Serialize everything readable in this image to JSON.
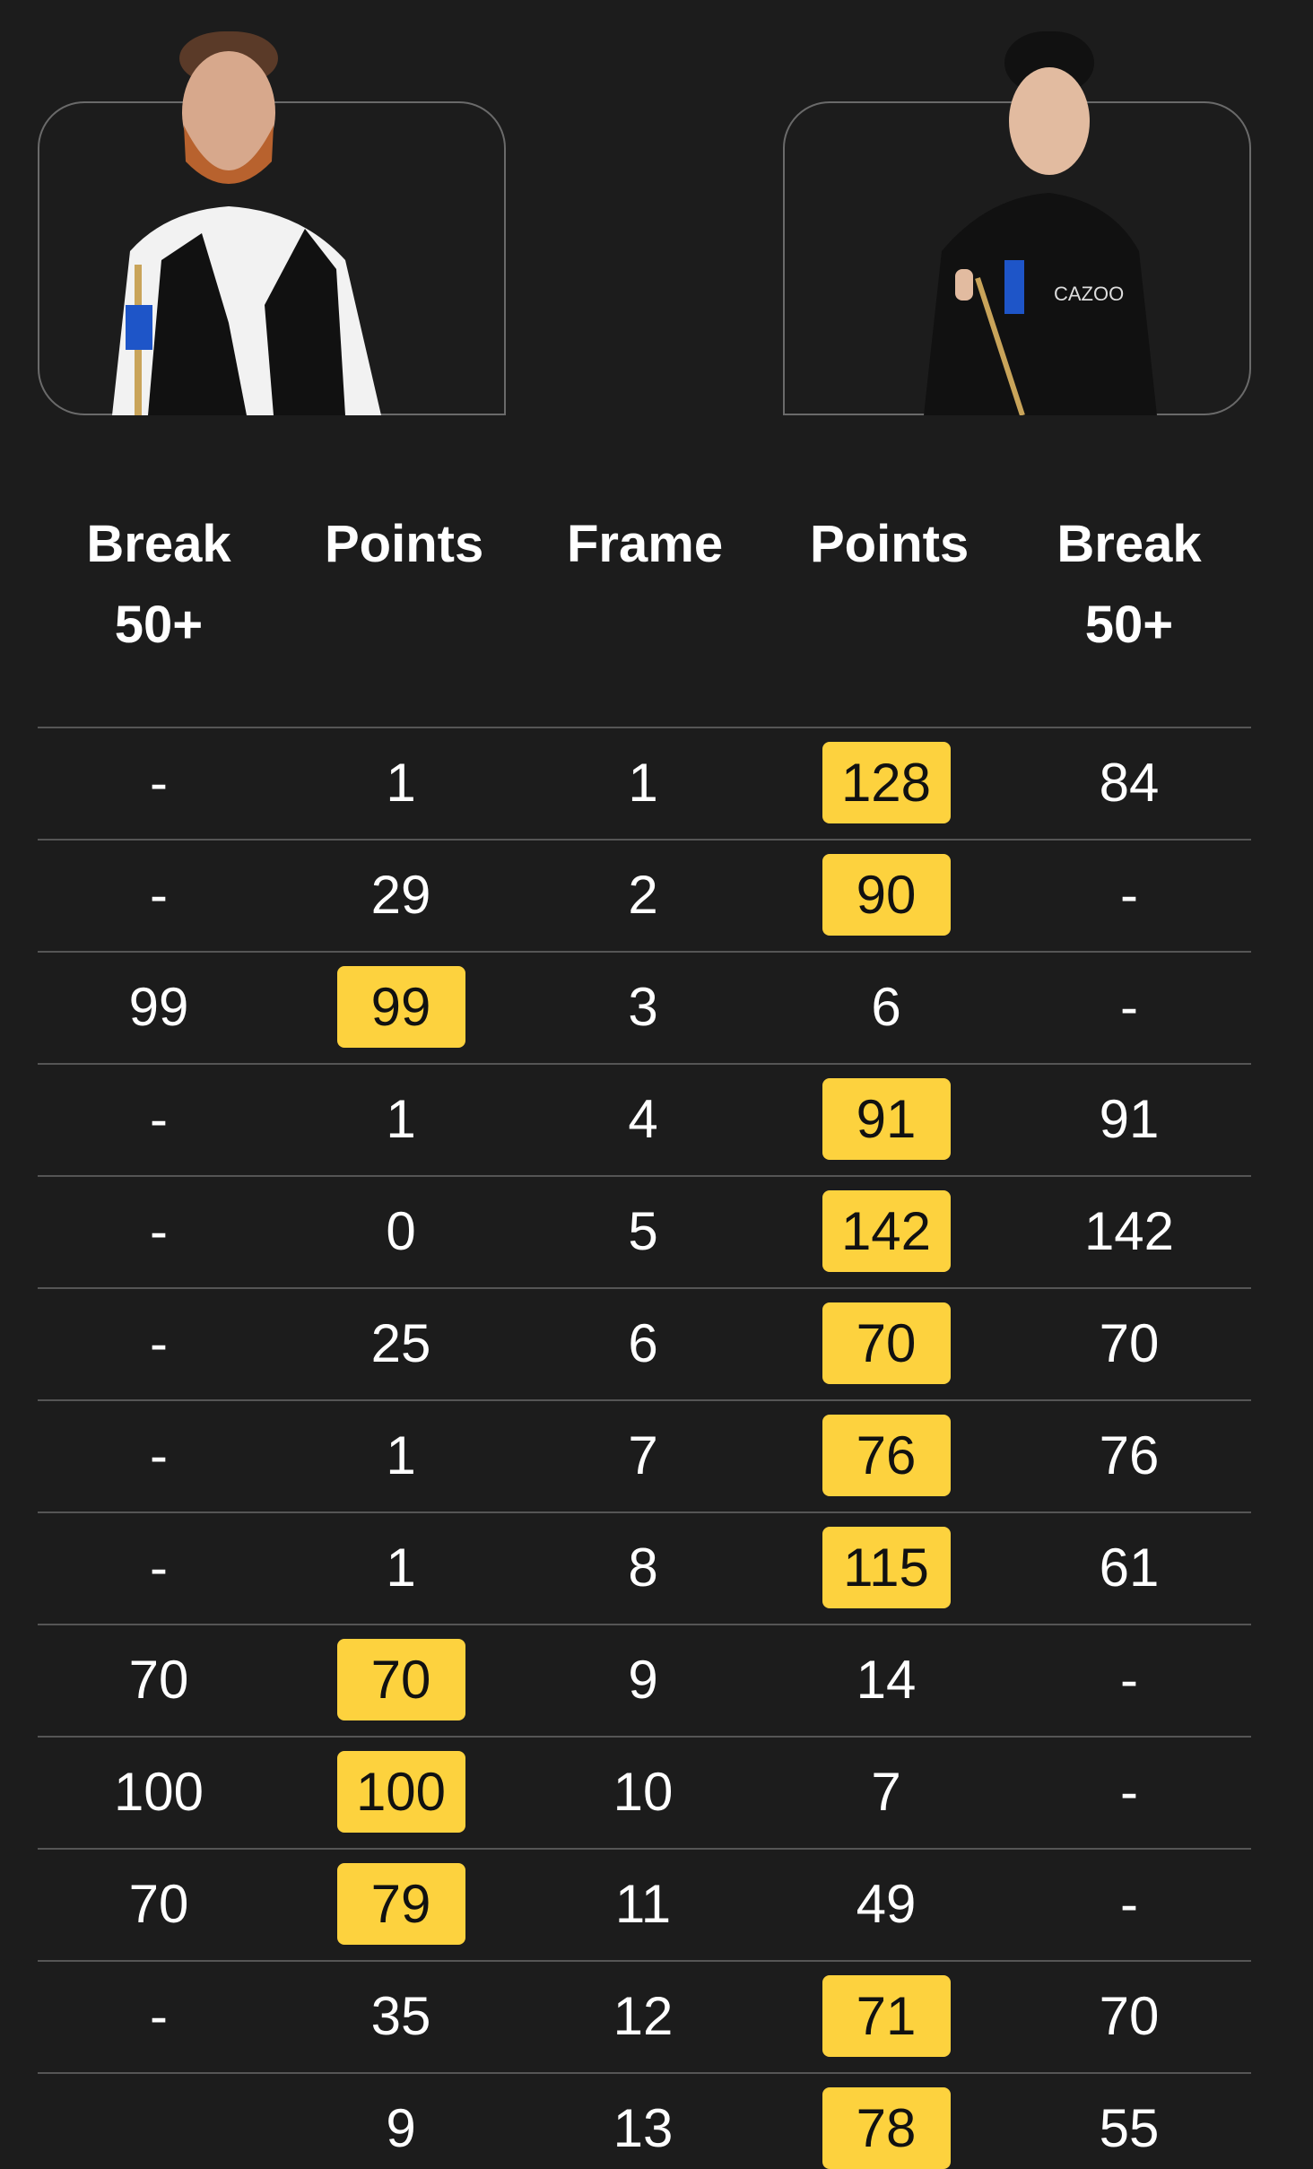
{
  "colors": {
    "background": "#1c1c1c",
    "winner_highlight": "#fdd23e",
    "text": "#ffffff"
  },
  "players": [
    {
      "side": "left",
      "photo": "player-portrait-red-beard-waistcoat"
    },
    {
      "side": "right",
      "photo": "player-portrait-black-shirt",
      "sponsor_text": "CAZOO"
    }
  ],
  "table": {
    "headers": [
      "Break 50+",
      "Points",
      "Frame",
      "Points",
      "Break 50+"
    ],
    "rows": [
      {
        "left_break": "-",
        "left_points": "1",
        "frame": "1",
        "right_points": "128",
        "right_break": "84",
        "winner": "right"
      },
      {
        "left_break": "-",
        "left_points": "29",
        "frame": "2",
        "right_points": "90",
        "right_break": "-",
        "winner": "right"
      },
      {
        "left_break": "99",
        "left_points": "99",
        "frame": "3",
        "right_points": "6",
        "right_break": "-",
        "winner": "left"
      },
      {
        "left_break": "-",
        "left_points": "1",
        "frame": "4",
        "right_points": "91",
        "right_break": "91",
        "winner": "right"
      },
      {
        "left_break": "-",
        "left_points": "0",
        "frame": "5",
        "right_points": "142",
        "right_break": "142",
        "winner": "right"
      },
      {
        "left_break": "-",
        "left_points": "25",
        "frame": "6",
        "right_points": "70",
        "right_break": "70",
        "winner": "right"
      },
      {
        "left_break": "-",
        "left_points": "1",
        "frame": "7",
        "right_points": "76",
        "right_break": "76",
        "winner": "right"
      },
      {
        "left_break": "-",
        "left_points": "1",
        "frame": "8",
        "right_points": "115",
        "right_break": "61",
        "winner": "right"
      },
      {
        "left_break": "70",
        "left_points": "70",
        "frame": "9",
        "right_points": "14",
        "right_break": "-",
        "winner": "left"
      },
      {
        "left_break": "100",
        "left_points": "100",
        "frame": "10",
        "right_points": "7",
        "right_break": "-",
        "winner": "left"
      },
      {
        "left_break": "70",
        "left_points": "79",
        "frame": "11",
        "right_points": "49",
        "right_break": "-",
        "winner": "left"
      },
      {
        "left_break": "-",
        "left_points": "35",
        "frame": "12",
        "right_points": "71",
        "right_break": "70",
        "winner": "right"
      },
      {
        "left_break": "",
        "left_points": "9",
        "frame": "13",
        "right_points": "78",
        "right_break": "55",
        "winner": "right"
      }
    ]
  }
}
